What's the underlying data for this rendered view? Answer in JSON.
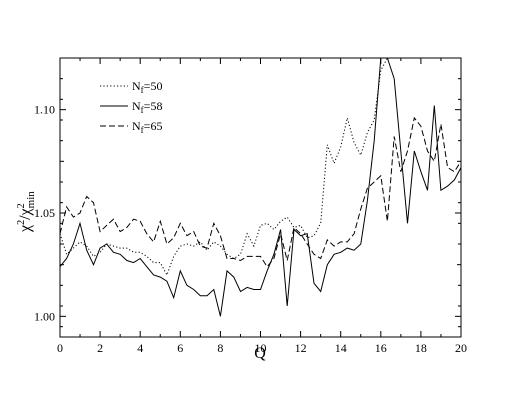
{
  "chart_data": {
    "type": "line",
    "xlabel": "Q",
    "ylabel": {
      "main": "χ",
      "sup1": "2",
      "mid": "/χ",
      "sup2": "2",
      "sub": "min"
    },
    "xlim": [
      0,
      20
    ],
    "ylim": [
      0.99,
      1.125
    ],
    "xticks": [
      0,
      2,
      4,
      6,
      8,
      10,
      12,
      14,
      16,
      18,
      20
    ],
    "yticks": [
      1.0,
      1.05,
      1.1
    ],
    "ytick_labels": [
      "1.00",
      "1.05",
      "1.10"
    ],
    "grid": false,
    "legend_position": "top-left",
    "series": [
      {
        "name": "N_f=50",
        "label_main": "N",
        "label_sub": "f",
        "label_rest": "=50",
        "style": "dotted",
        "x": [
          0,
          0.33,
          0.67,
          1,
          1.33,
          1.67,
          2,
          2.33,
          2.67,
          3,
          3.33,
          3.67,
          4,
          4.33,
          4.67,
          5,
          5.33,
          5.67,
          6,
          6.33,
          6.67,
          7,
          7.33,
          7.67,
          8,
          8.33,
          8.67,
          9,
          9.33,
          9.67,
          10,
          10.33,
          10.67,
          11,
          11.33,
          11.67,
          12,
          12.33,
          12.67,
          13,
          13.33,
          13.67,
          14,
          14.33,
          14.67,
          15,
          15.33,
          15.67,
          16,
          16.33
        ],
        "y": [
          1.04,
          1.03,
          1.033,
          1.036,
          1.034,
          1.029,
          1.031,
          1.035,
          1.034,
          1.033,
          1.033,
          1.031,
          1.031,
          1.029,
          1.026,
          1.026,
          1.02,
          1.029,
          1.034,
          1.035,
          1.034,
          1.036,
          1.032,
          1.036,
          1.034,
          1.03,
          1.028,
          1.03,
          1.04,
          1.034,
          1.044,
          1.045,
          1.042,
          1.046,
          1.048,
          1.043,
          1.044,
          1.038,
          1.039,
          1.045,
          1.083,
          1.074,
          1.082,
          1.096,
          1.084,
          1.078,
          1.089,
          1.095,
          1.119,
          1.125
        ]
      },
      {
        "name": "N_f=58",
        "label_main": "N",
        "label_sub": "f",
        "label_rest": "=58",
        "style": "solid",
        "x": [
          0,
          0.33,
          0.67,
          1,
          1.33,
          1.67,
          2,
          2.33,
          2.67,
          3,
          3.33,
          3.67,
          4,
          4.33,
          4.67,
          5,
          5.33,
          5.67,
          6,
          6.33,
          6.67,
          7,
          7.33,
          7.67,
          8,
          8.33,
          8.67,
          9,
          9.33,
          9.67,
          10,
          10.33,
          10.67,
          11,
          11.33,
          11.67,
          12,
          12.33,
          12.67,
          13,
          13.33,
          13.67,
          14,
          14.33,
          14.67,
          15,
          15.33,
          15.67,
          16,
          16.33,
          16.67,
          17,
          17.33,
          17.67,
          18,
          18.33,
          18.67,
          19,
          19.33,
          19.67,
          20
        ],
        "y": [
          1.024,
          1.028,
          1.035,
          1.045,
          1.032,
          1.025,
          1.033,
          1.035,
          1.031,
          1.03,
          1.027,
          1.026,
          1.028,
          1.024,
          1.02,
          1.019,
          1.017,
          1.009,
          1.022,
          1.015,
          1.013,
          1.01,
          1.01,
          1.013,
          1.0,
          1.022,
          1.019,
          1.012,
          1.014,
          1.013,
          1.013,
          1.022,
          1.03,
          1.042,
          1.005,
          1.042,
          1.039,
          1.04,
          1.016,
          1.012,
          1.025,
          1.03,
          1.031,
          1.033,
          1.032,
          1.035,
          1.056,
          1.085,
          1.125,
          1.125,
          1.115,
          1.08,
          1.045,
          1.08,
          1.07,
          1.061,
          1.102,
          1.061,
          1.063,
          1.066,
          1.072
        ]
      },
      {
        "name": "N_f=65",
        "label_main": "N",
        "label_sub": "f",
        "label_rest": "=65",
        "style": "dashed",
        "x": [
          0,
          0.33,
          0.67,
          1,
          1.33,
          1.67,
          2,
          2.33,
          2.67,
          3,
          3.33,
          3.67,
          4,
          4.33,
          4.67,
          5,
          5.33,
          5.67,
          6,
          6.33,
          6.67,
          7,
          7.33,
          7.67,
          8,
          8.33,
          8.67,
          9,
          9.33,
          9.67,
          10,
          10.33,
          10.67,
          11,
          11.33,
          11.67,
          12,
          12.33,
          12.67,
          13,
          13.33,
          13.67,
          14,
          14.33,
          14.67,
          15,
          15.33,
          15.67,
          16,
          16.33,
          16.67,
          17,
          17.33,
          17.67,
          18,
          18.33,
          18.67,
          19,
          19.33,
          19.67,
          20
        ],
        "y": [
          1.04,
          1.053,
          1.048,
          1.05,
          1.058,
          1.055,
          1.041,
          1.044,
          1.047,
          1.041,
          1.043,
          1.047,
          1.046,
          1.04,
          1.036,
          1.046,
          1.035,
          1.038,
          1.045,
          1.039,
          1.041,
          1.034,
          1.033,
          1.045,
          1.039,
          1.028,
          1.028,
          1.027,
          1.029,
          1.029,
          1.029,
          1.024,
          1.028,
          1.04,
          1.027,
          1.043,
          1.04,
          1.035,
          1.03,
          1.028,
          1.037,
          1.034,
          1.036,
          1.036,
          1.04,
          1.052,
          1.062,
          1.065,
          1.068,
          1.046,
          1.087,
          1.07,
          1.08,
          1.096,
          1.092,
          1.08,
          1.075,
          1.093,
          1.072,
          1.07,
          1.075
        ]
      }
    ]
  }
}
